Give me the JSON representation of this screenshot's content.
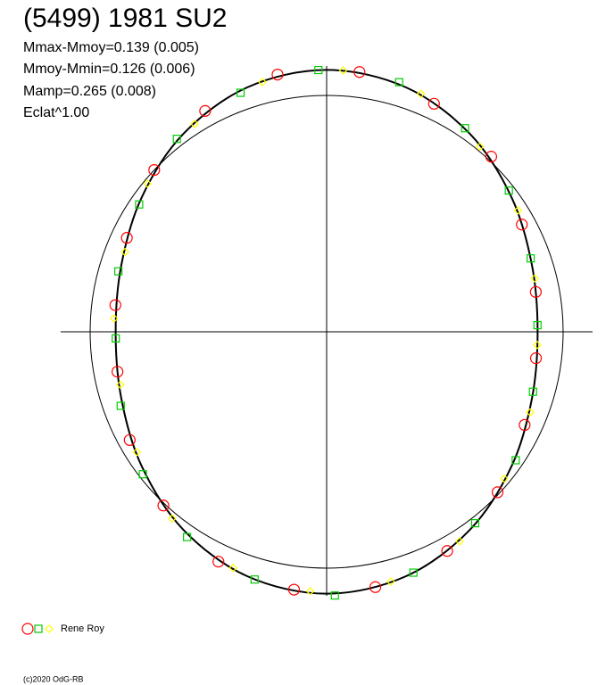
{
  "chart_data": {
    "type": "polar",
    "title": "(5499) 1981 SU2",
    "annotations": [
      "Mmax-Mmoy=0.139 (0.005)",
      "Mmoy-Mmin=0.126 (0.006)",
      "Mamp=0.265 (0.008)",
      "Eclat^1.00"
    ],
    "footer": "(c)2020 OdG-RB",
    "xlim": [
      0,
      1
    ],
    "series": [
      {
        "name": "Rene Roy",
        "marker": "circle",
        "color": "#ff0000",
        "x": [
          0.02,
          0.07,
          0.12,
          0.17,
          0.22,
          0.27,
          0.32,
          0.37,
          0.42,
          0.47,
          0.52,
          0.57,
          0.62,
          0.67,
          0.72,
          0.77,
          0.82,
          0.87,
          0.92,
          0.97
        ],
        "values": [
          0.13,
          0.08,
          0.02,
          -0.07,
          -0.12,
          -0.13,
          -0.09,
          -0.01,
          0.07,
          0.12,
          0.12,
          0.09,
          0.01,
          -0.06,
          -0.12,
          -0.12,
          -0.08,
          0.0,
          0.08,
          0.13
        ]
      },
      {
        "marker": "square",
        "color": "#00cc00",
        "x": [
          0.045,
          0.095,
          0.145,
          0.195,
          0.245,
          0.295,
          0.345,
          0.395,
          0.445,
          0.495,
          0.545,
          0.595,
          0.645,
          0.695,
          0.745,
          0.795,
          0.845,
          0.895,
          0.945,
          0.995
        ],
        "values": [
          0.12,
          0.05,
          -0.03,
          -0.1,
          -0.13,
          -0.11,
          -0.04,
          0.03,
          0.1,
          0.14,
          0.11,
          0.06,
          -0.02,
          -0.09,
          -0.13,
          -0.1,
          -0.05,
          0.04,
          0.09,
          0.13
        ]
      },
      {
        "marker": "diamond",
        "color": "#ffff00",
        "x": [
          0.01,
          0.06,
          0.11,
          0.16,
          0.21,
          0.26,
          0.31,
          0.36,
          0.41,
          0.46,
          0.51,
          0.56,
          0.61,
          0.66,
          0.71,
          0.76,
          0.81,
          0.86,
          0.91,
          0.96
        ],
        "values": [
          0.13,
          0.1,
          0.02,
          -0.05,
          -0.11,
          -0.13,
          -0.09,
          -0.03,
          0.06,
          0.11,
          0.12,
          0.09,
          0.03,
          -0.06,
          -0.12,
          -0.12,
          -0.1,
          -0.02,
          0.05,
          0.11
        ]
      }
    ],
    "fit": {
      "color": "#000000",
      "x": [
        0,
        0.05,
        0.1,
        0.15,
        0.2,
        0.25,
        0.3,
        0.35,
        0.4,
        0.45,
        0.5,
        0.55,
        0.6,
        0.65,
        0.7,
        0.75,
        0.8,
        0.85,
        0.9,
        0.95
      ],
      "values": [
        0.13,
        0.105,
        0.04,
        -0.04,
        -0.105,
        -0.13,
        -0.105,
        -0.04,
        0.04,
        0.105,
        0.13,
        0.105,
        0.04,
        -0.04,
        -0.105,
        -0.13,
        -0.105,
        -0.04,
        0.04,
        0.105
      ]
    }
  }
}
